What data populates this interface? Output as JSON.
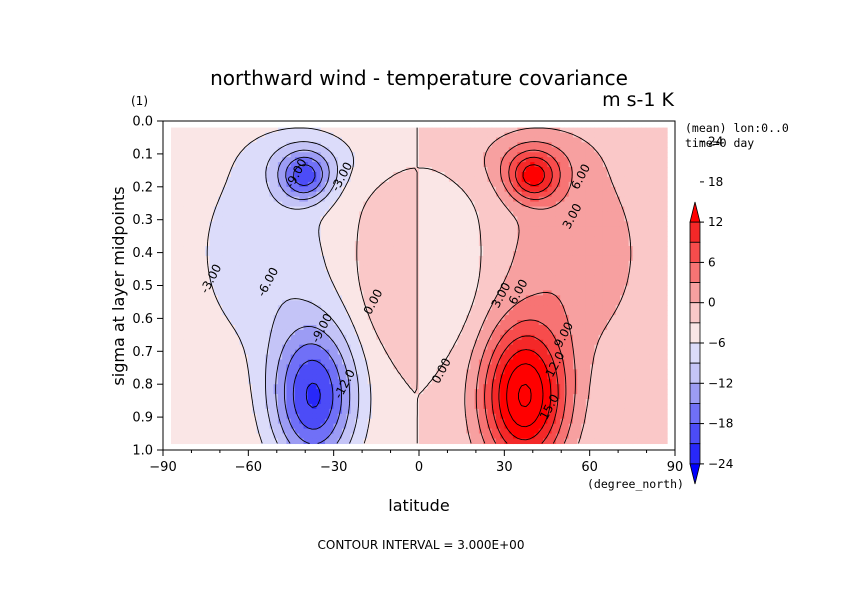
{
  "chart_data": {
    "type": "contour",
    "title": "northward wind - temperature covariance",
    "units": "m s-1 K",
    "xlabel": "latitude",
    "xunits": "(degree_north)",
    "ylabel": "sigma at layer midpoints",
    "yunits": "(1)",
    "xlim": [
      -90,
      90
    ],
    "ylim": [
      1.0,
      0.0
    ],
    "x_ticks": [
      -90,
      -60,
      -30,
      0,
      30,
      60,
      90
    ],
    "x_tick_labels": [
      "−90",
      "−60",
      "−30",
      "0",
      "30",
      "60",
      "90"
    ],
    "y_ticks": [
      0.0,
      0.1,
      0.2,
      0.3,
      0.4,
      0.5,
      0.6,
      0.7,
      0.8,
      0.9,
      1.0
    ],
    "y_tick_labels": [
      "0.0",
      "0.1",
      "0.2",
      "0.3",
      "0.4",
      "0.5",
      "0.6",
      "0.7",
      "0.8",
      "0.9",
      "1.0"
    ],
    "annotations": [
      "(mean) lon:0..0",
      "time=0 day"
    ],
    "footer": "CONTOUR INTERVAL = 3.000E+00",
    "contour_interval": 3.0,
    "colorbar": {
      "levels": [
        -24,
        -18,
        -12,
        -6,
        0,
        6,
        12,
        18,
        24
      ],
      "labels": [
        "−24",
        "−18",
        "−12",
        "−6",
        "0",
        "6",
        "12",
        "18",
        "24"
      ],
      "colors": [
        "#0000ff",
        "#2828fa",
        "#4c4cf7",
        "#7070f7",
        "#9c9cf4",
        "#c4c4f7",
        "#dcdcfa",
        "#fae6e6",
        "#fac8c8",
        "#f7a0a0",
        "#f77474",
        "#f74c4c",
        "#f42828",
        "#ff0000"
      ]
    },
    "features": [
      {
        "hemisphere": "south",
        "lat": -37,
        "sigma": 0.84,
        "value": -18
      },
      {
        "hemisphere": "south",
        "lat": -40,
        "sigma": 0.17,
        "value": -12
      },
      {
        "hemisphere": "north",
        "lat": 37,
        "sigma": 0.84,
        "value": 21
      },
      {
        "hemisphere": "north",
        "lat": 40,
        "sigma": 0.17,
        "value": 12
      }
    ],
    "contour_labels": [
      {
        "text": "-3.00",
        "lat": -73,
        "sigma": 0.48
      },
      {
        "text": "-6.00",
        "lat": -53,
        "sigma": 0.49
      },
      {
        "text": "-9.00",
        "lat": -34,
        "sigma": 0.63
      },
      {
        "text": "-12.0",
        "lat": -26,
        "sigma": 0.8
      },
      {
        "text": "-9.00",
        "lat": -43,
        "sigma": 0.16
      },
      {
        "text": "-3.00",
        "lat": -27,
        "sigma": 0.17
      },
      {
        "text": "0.00",
        "lat": -16,
        "sigma": 0.55
      },
      {
        "text": "0.00",
        "lat": 8,
        "sigma": 0.76
      },
      {
        "text": "3.00",
        "lat": 29,
        "sigma": 0.53
      },
      {
        "text": "6.00",
        "lat": 35,
        "sigma": 0.52
      },
      {
        "text": "9.00",
        "lat": 51,
        "sigma": 0.65
      },
      {
        "text": "12.0",
        "lat": 48,
        "sigma": 0.74
      },
      {
        "text": "15.0",
        "lat": 46,
        "sigma": 0.87
      },
      {
        "text": "6.00",
        "lat": 57,
        "sigma": 0.17
      },
      {
        "text": "3.00",
        "lat": 54,
        "sigma": 0.29
      }
    ]
  }
}
